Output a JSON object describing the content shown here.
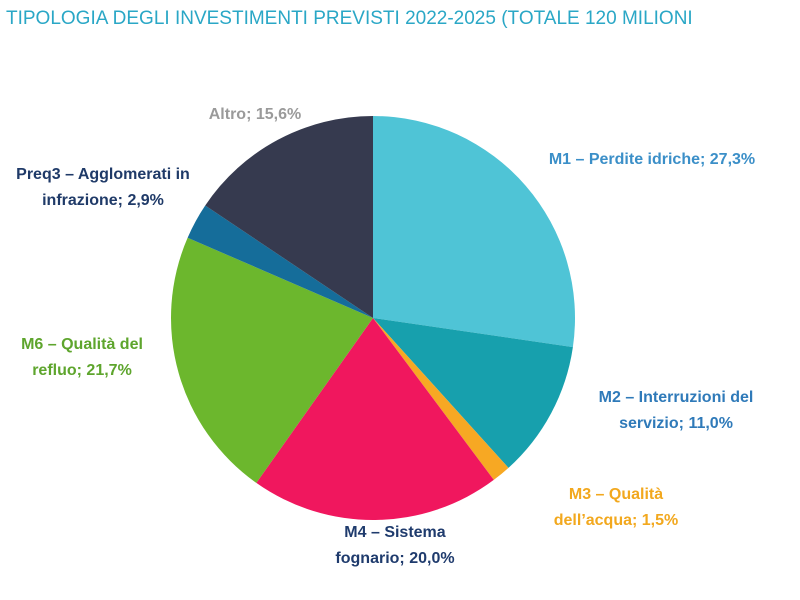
{
  "chart_data": {
    "type": "pie",
    "title": "TIPOLOGIA DEGLI INVESTIMENTI PREVISTI 2022-2025 (TOTALE 120 MILIONI",
    "categories": [
      "M1 – Perdite idriche;",
      "M2 – Interruzioni del servizio;",
      "M3 – Qualità dell’acqua;",
      "M4 – Sistema fognario;",
      "M6 – Qualità del refluo;",
      "Preq3 – Agglomerati in infrazione;",
      "Altro;"
    ],
    "values": [
      27.3,
      11.0,
      1.5,
      20.0,
      21.7,
      2.9,
      15.6
    ],
    "value_labels": [
      "27,3%",
      "11,0%",
      "1,5%",
      "20,0%",
      "21,7%",
      "2,9%",
      "15,6%"
    ],
    "colors": [
      "#4fc4d6",
      "#17a0ad",
      "#f7a823",
      "#f0175e",
      "#6cb72d",
      "#156d9a",
      "#363a4f"
    ],
    "label_colors": [
      "#3b8fc8",
      "#2f7ab9",
      "#f2a81e",
      "#1f3b6d",
      "#5ea52d",
      "#1f3a68",
      "#9a9a9a"
    ]
  }
}
